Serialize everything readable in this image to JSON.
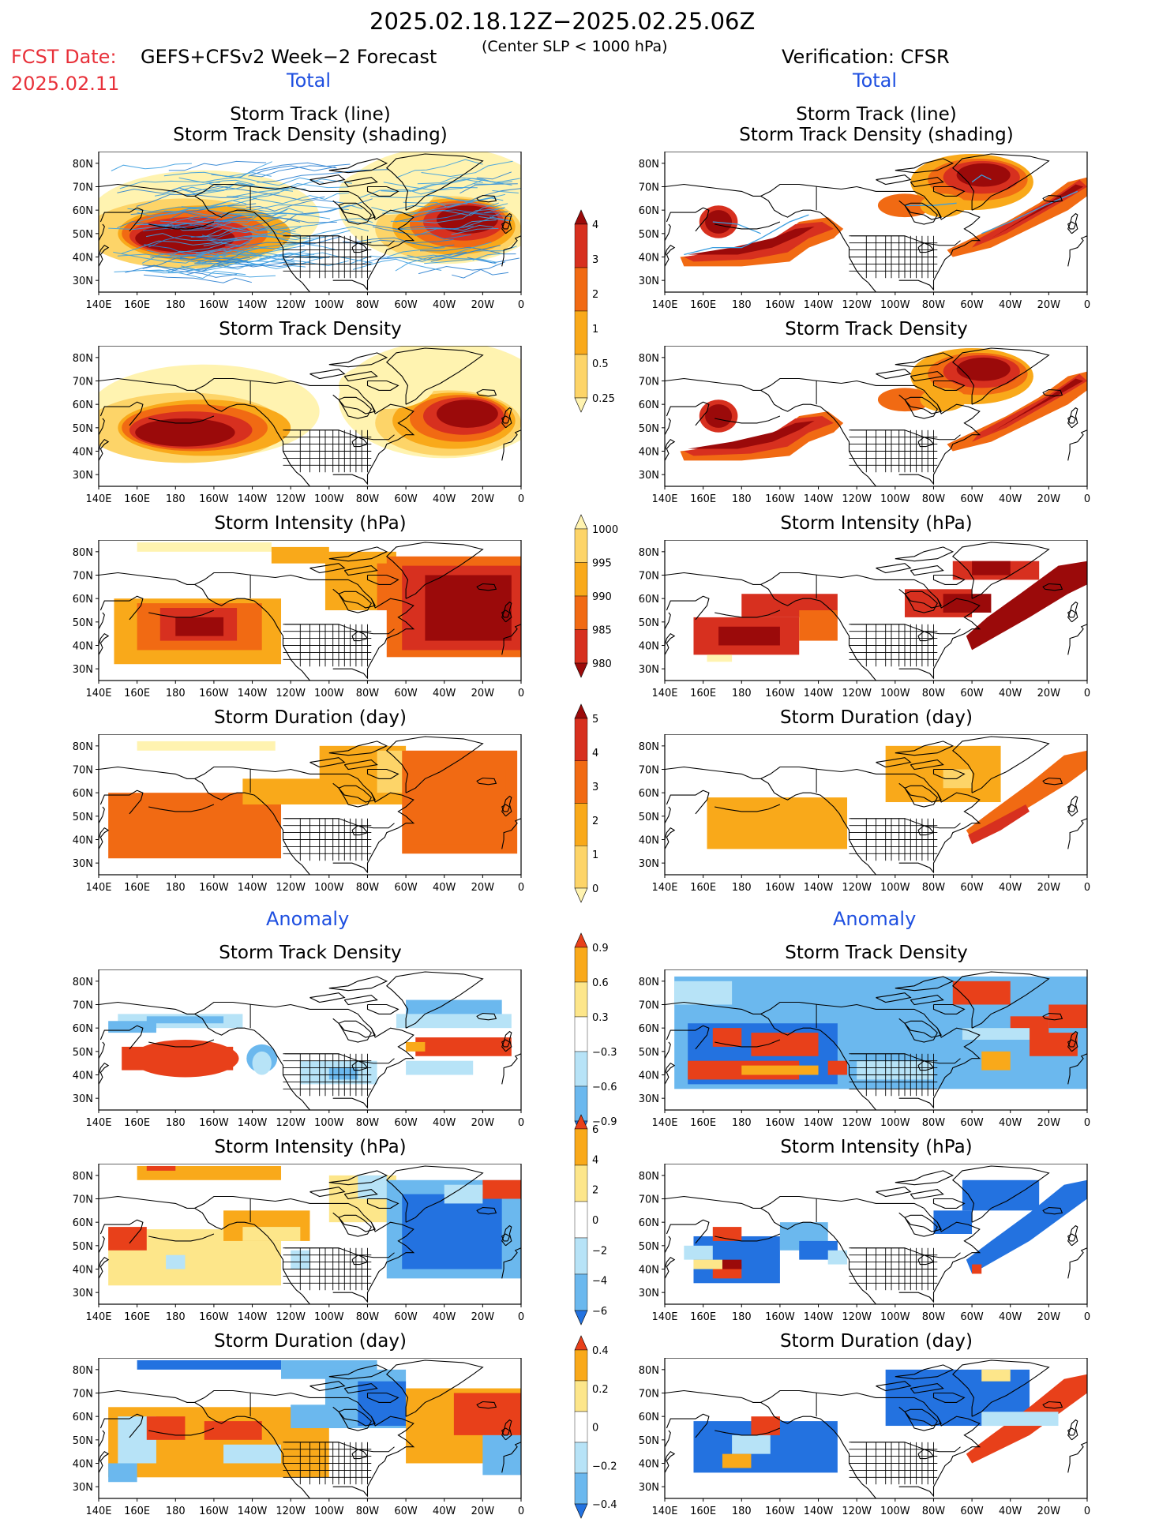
{
  "header": {
    "title": "2025.02.18.12Z−2025.02.25.06Z",
    "fcst_label": "FCST Date:",
    "fcst_date": "2025.02.11",
    "forecast_name": "GEFS+CFSv2 Week−2 Forecast",
    "center_slp": "(Center SLP < 1000 hPa)",
    "verification": "Verification: CFSR"
  },
  "sections": {
    "total": "Total",
    "anomaly": "Anomaly"
  },
  "panel_titles": {
    "track_line": "Storm Track (line)",
    "track_density_shading": "Storm Track Density (shading)",
    "track_density": "Storm Track Density",
    "intensity": "Storm Intensity (hPa)",
    "duration": "Storm Duration (day)"
  },
  "map_axes": {
    "lat_labels": [
      "80N",
      "70N",
      "60N",
      "50N",
      "40N",
      "30N"
    ],
    "lon_labels": [
      "140E",
      "160E",
      "180",
      "160W",
      "140W",
      "120W",
      "100W",
      "80W",
      "60W",
      "40W",
      "20W",
      "0"
    ]
  },
  "colorbars": [
    {
      "id": "density-total",
      "labels": [
        "4",
        "3",
        "2",
        "1",
        "0.5",
        "0.25"
      ],
      "colors": [
        "#9b0a0a",
        "#d7301f",
        "#f16a13",
        "#f9a91a",
        "#fdd468",
        "#fff3b0"
      ]
    },
    {
      "id": "intensity-total",
      "labels": [
        "1000",
        "995",
        "990",
        "985",
        "980"
      ],
      "colors": [
        "#fff3b0",
        "#fdd468",
        "#f9a91a",
        "#f16a13",
        "#d7301f",
        "#9b0a0a"
      ]
    },
    {
      "id": "duration-total",
      "labels": [
        "5",
        "4",
        "3",
        "2",
        "1",
        "0"
      ],
      "colors": [
        "#9b0a0a",
        "#d7301f",
        "#f16a13",
        "#f9a91a",
        "#fdd468",
        "#fff3b0"
      ]
    },
    {
      "id": "density-anom",
      "labels": [
        "0.9",
        "0.6",
        "0.3",
        "−0.3",
        "−0.6",
        "−0.9"
      ],
      "colors": [
        "#e8401a",
        "#f9a91a",
        "#fde68a",
        "#ffffff",
        "#b7e3f7",
        "#6bb8ee",
        "#2372e0"
      ]
    },
    {
      "id": "intensity-anom",
      "labels": [
        "6",
        "4",
        "2",
        "0",
        "−2",
        "−4",
        "−6"
      ],
      "colors": [
        "#e8401a",
        "#f9a91a",
        "#fde68a",
        "#ffffff",
        "#b7e3f7",
        "#6bb8ee",
        "#2372e0"
      ]
    },
    {
      "id": "duration-anom",
      "labels": [
        "0.4",
        "0.2",
        "0",
        "−0.2",
        "−0.4"
      ],
      "colors": [
        "#e8401a",
        "#f9a91a",
        "#fde68a",
        "#ffffff",
        "#b7e3f7",
        "#6bb8ee",
        "#2372e0"
      ]
    }
  ]
}
